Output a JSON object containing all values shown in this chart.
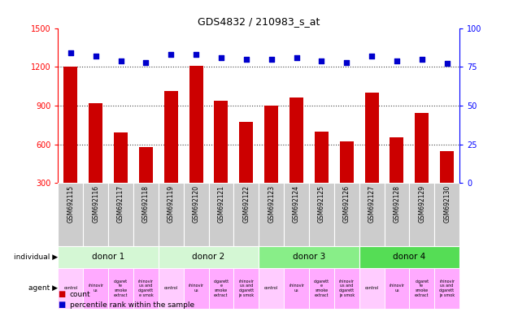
{
  "title": "GDS4832 / 210983_s_at",
  "samples": [
    "GSM692115",
    "GSM692116",
    "GSM692117",
    "GSM692118",
    "GSM692119",
    "GSM692120",
    "GSM692121",
    "GSM692122",
    "GSM692123",
    "GSM692124",
    "GSM692125",
    "GSM692126",
    "GSM692127",
    "GSM692128",
    "GSM692129",
    "GSM692130"
  ],
  "counts": [
    1200,
    920,
    690,
    580,
    1010,
    1210,
    940,
    775,
    900,
    960,
    695,
    620,
    1000,
    655,
    840,
    545
  ],
  "percentile_ranks": [
    84,
    82,
    79,
    78,
    83,
    83,
    81,
    80,
    80,
    81,
    79,
    78,
    82,
    79,
    80,
    77
  ],
  "ylim_left": [
    300,
    1500
  ],
  "ylim_right": [
    0,
    100
  ],
  "yticks_left": [
    300,
    600,
    900,
    1200,
    1500
  ],
  "yticks_right": [
    0,
    25,
    50,
    75,
    100
  ],
  "bar_color": "#cc0000",
  "dot_color": "#0000cc",
  "bar_width": 0.55,
  "donors": [
    {
      "label": "donor 1",
      "start": 0,
      "end": 4,
      "color": "#d4f7d4"
    },
    {
      "label": "donor 2",
      "start": 4,
      "end": 8,
      "color": "#d4f7d4"
    },
    {
      "label": "donor 3",
      "start": 8,
      "end": 12,
      "color": "#88ee88"
    },
    {
      "label": "donor 4",
      "start": 12,
      "end": 16,
      "color": "#55dd55"
    }
  ],
  "agents": [
    {
      "label": "control",
      "idx": 0,
      "color": "#ffccff"
    },
    {
      "label": "rhinovir\nus",
      "idx": 1,
      "color": "#ffaaff"
    },
    {
      "label": "cigaret\nte\nsmoke\nextract",
      "idx": 2,
      "color": "#ffaaff"
    },
    {
      "label": "rhinovir\nus and\ncigarett\ne smok",
      "idx": 3,
      "color": "#ffaaff"
    },
    {
      "label": "control",
      "idx": 4,
      "color": "#ffccff"
    },
    {
      "label": "rhinovir\nus",
      "idx": 5,
      "color": "#ffaaff"
    },
    {
      "label": "cigarett\ne\nsmoke\nextract",
      "idx": 6,
      "color": "#ffaaff"
    },
    {
      "label": "rhinovir\nus and\ncigarett\nje smok",
      "idx": 7,
      "color": "#ffaaff"
    },
    {
      "label": "control",
      "idx": 8,
      "color": "#ffccff"
    },
    {
      "label": "rhinovir\nus",
      "idx": 9,
      "color": "#ffaaff"
    },
    {
      "label": "cigarett\ne\nsmoke\nextract",
      "idx": 10,
      "color": "#ffaaff"
    },
    {
      "label": "rhinovir\nus and\ncigarett\nje smok",
      "idx": 11,
      "color": "#ffaaff"
    },
    {
      "label": "control",
      "idx": 12,
      "color": "#ffccff"
    },
    {
      "label": "rhinovir\nus",
      "idx": 13,
      "color": "#ffaaff"
    },
    {
      "label": "cigaret\nte\nsmoke\nextract",
      "idx": 14,
      "color": "#ffaaff"
    },
    {
      "label": "rhinovir\nus and\ncigarett\nje smok",
      "idx": 15,
      "color": "#ffaaff"
    }
  ],
  "gridline_color": "#444444",
  "gridline_style": "dotted",
  "bg_plot": "#ffffff",
  "bg_xtick": "#cccccc",
  "individual_label": "individual",
  "agent_label": "agent",
  "legend_count_color": "#cc0000",
  "legend_percentile_color": "#0000cc",
  "legend_count_label": "count",
  "legend_percentile_label": "percentile rank within the sample"
}
